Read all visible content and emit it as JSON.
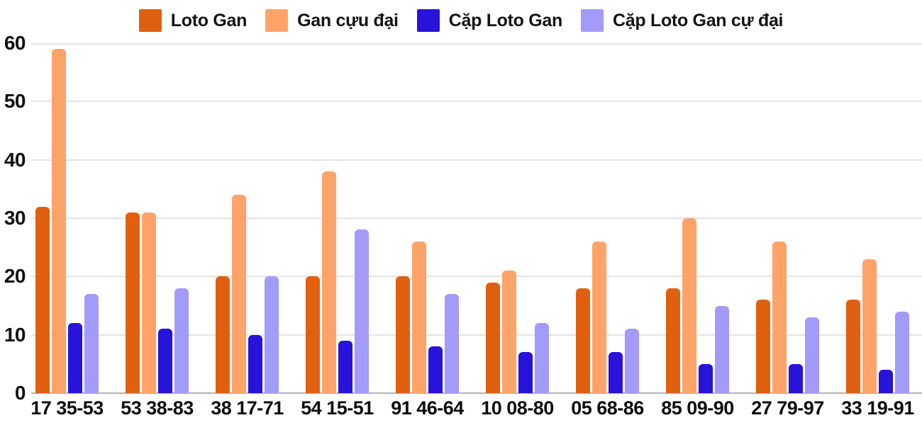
{
  "chart_data": {
    "type": "bar",
    "title": "",
    "categories": [
      "17 35-53",
      "53 38-83",
      "38 17-71",
      "54 15-51",
      "91 46-64",
      "10 08-80",
      "05 68-86",
      "85 09-90",
      "27 79-97",
      "33 19-91"
    ],
    "series": [
      {
        "key": "loto-gan",
        "name": "Loto Gan",
        "color": "#e06010",
        "values": [
          32,
          31,
          20,
          20,
          20,
          19,
          18,
          18,
          16,
          16
        ]
      },
      {
        "key": "gan-cuu-dai",
        "name": "Gan cựu đại",
        "color": "#ffa368",
        "values": [
          59,
          31,
          34,
          38,
          26,
          21,
          26,
          30,
          26,
          23
        ]
      },
      {
        "key": "cap-loto-gan",
        "name": "Cặp Loto Gan",
        "color": "#2713da",
        "values": [
          12,
          11,
          10,
          9,
          8,
          7,
          7,
          5,
          5,
          4
        ]
      },
      {
        "key": "cap-loto-gan-cu-dai",
        "name": "Cặp Loto Gan cự đại",
        "color": "#a29bfa",
        "values": [
          17,
          18,
          20,
          28,
          17,
          12,
          11,
          15,
          13,
          14
        ]
      }
    ],
    "ylim": [
      0,
      60
    ],
    "yticks": [
      0,
      10,
      20,
      30,
      40,
      50,
      60
    ],
    "grid": true,
    "legend_position": "top",
    "colors": {
      "gridline": "#e4e4e4",
      "axis_line": "#b3b3b3",
      "text": "#111111",
      "background": "#ffffff"
    }
  }
}
